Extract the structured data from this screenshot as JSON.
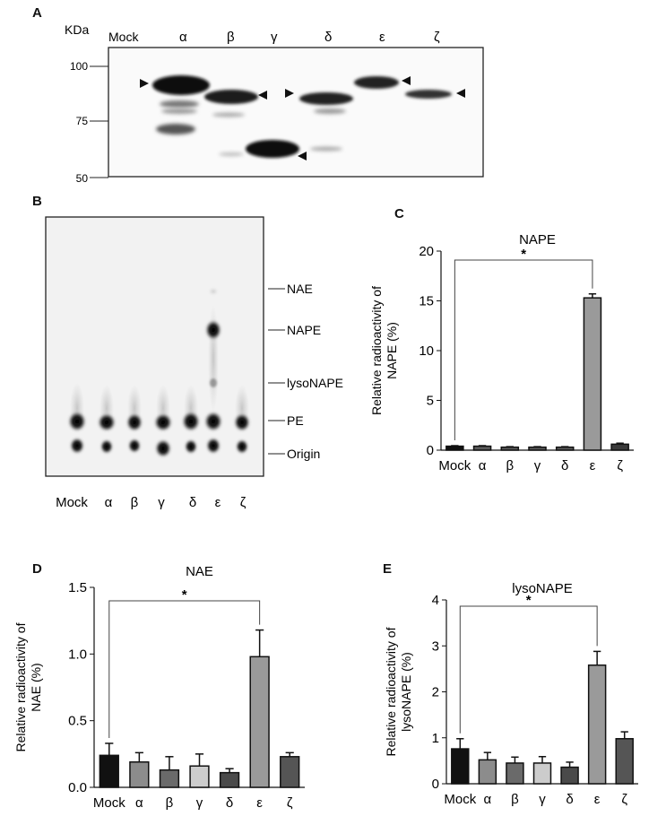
{
  "panel_labels": {
    "a": "A",
    "b": "B",
    "c": "C",
    "d": "D",
    "e": "E"
  },
  "lanes": [
    "Mock",
    "α",
    "β",
    "γ",
    "δ",
    "ε",
    "ζ"
  ],
  "blot": {
    "unit_label": "KDa",
    "markers": [
      "100",
      "75",
      "50"
    ]
  },
  "tlc": {
    "band_labels": [
      "NAE",
      "NAPE",
      "lysoNAPE",
      "PE",
      "Origin"
    ]
  },
  "significance": "*",
  "chart_data": [
    {
      "type": "bar",
      "title": "NAPE",
      "categories": [
        "Mock",
        "α",
        "β",
        "γ",
        "δ",
        "ε",
        "ζ"
      ],
      "values": [
        0.4,
        0.4,
        0.3,
        0.3,
        0.3,
        15.3,
        0.6
      ],
      "errors": [
        0.05,
        0.05,
        0.05,
        0.05,
        0.05,
        0.4,
        0.1
      ],
      "ylabel": "Relative radioactivity of NAPE (%)",
      "ylabel_lines": [
        "Relative radioactivity of",
        "NAPE (%)"
      ],
      "ylim": [
        0,
        20
      ],
      "yticks": [
        "0",
        "5",
        "10",
        "15",
        "20"
      ],
      "colors": [
        "#111111",
        "#5a5a5a",
        "#5a5a5a",
        "#5a5a5a",
        "#5a5a5a",
        "#9a9a9a",
        "#3a3a3a"
      ],
      "grid": false
    },
    {
      "type": "bar",
      "title": "NAE",
      "categories": [
        "Mock",
        "α",
        "β",
        "γ",
        "δ",
        "ε",
        "ζ"
      ],
      "values": [
        0.24,
        0.19,
        0.13,
        0.16,
        0.11,
        0.98,
        0.23
      ],
      "errors": [
        0.09,
        0.07,
        0.1,
        0.09,
        0.03,
        0.2,
        0.03
      ],
      "ylabel": "Relative radioactivity of NAE (%)",
      "ylabel_lines": [
        "Relative radioactivity of",
        "NAE (%)"
      ],
      "ylim": [
        0,
        1.5
      ],
      "yticks": [
        "0.0",
        "0.5",
        "1.0",
        "1.5"
      ],
      "colors": [
        "#111111",
        "#8c8c8c",
        "#6a6a6a",
        "#cccccc",
        "#4a4a4a",
        "#9a9a9a",
        "#555555"
      ],
      "grid": false
    },
    {
      "type": "bar",
      "title": "lysoNAPE",
      "categories": [
        "Mock",
        "α",
        "β",
        "γ",
        "δ",
        "ε",
        "ζ"
      ],
      "values": [
        0.76,
        0.52,
        0.45,
        0.45,
        0.36,
        2.58,
        0.98
      ],
      "errors": [
        0.22,
        0.16,
        0.13,
        0.14,
        0.11,
        0.3,
        0.15
      ],
      "ylabel": "Relative radioactivity of lysoNAPE (%)",
      "ylabel_lines": [
        "Relative radioactivity of",
        "lysoNAPE (%)"
      ],
      "ylim": [
        0,
        4
      ],
      "yticks": [
        "0",
        "1",
        "2",
        "3",
        "4"
      ],
      "colors": [
        "#111111",
        "#8c8c8c",
        "#6a6a6a",
        "#cccccc",
        "#4a4a4a",
        "#9a9a9a",
        "#555555"
      ],
      "grid": false
    }
  ]
}
